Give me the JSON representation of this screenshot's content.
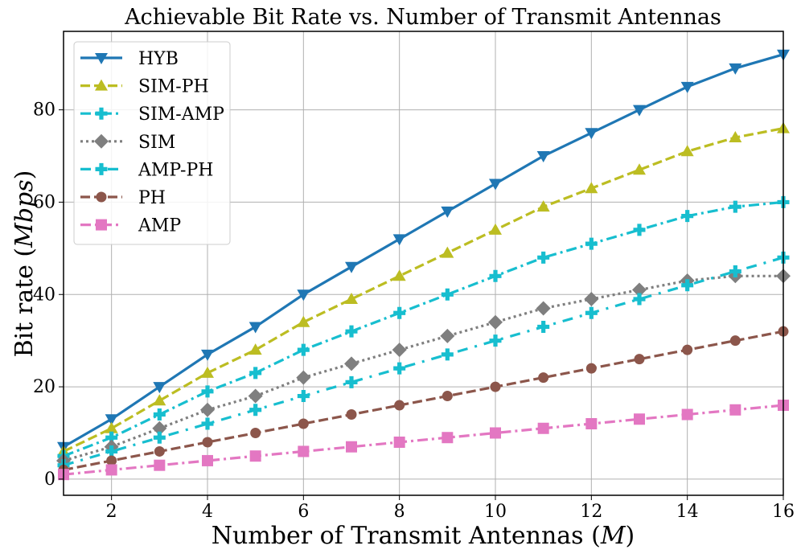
{
  "chart_data": {
    "type": "line",
    "title": "Achievable Bit Rate vs. Number of Transmit Antennas",
    "xlabel_prefix": "Number of Transmit Antennas (",
    "xlabel_var": "M",
    "xlabel_suffix": ")",
    "ylabel_prefix": "Bit rate (",
    "ylabel_var": "Mbps",
    "ylabel_suffix": ")",
    "xlim": [
      1,
      16
    ],
    "ylim": [
      -3.5,
      97
    ],
    "xticks": [
      2,
      4,
      6,
      8,
      10,
      12,
      14,
      16
    ],
    "yticks": [
      0,
      20,
      40,
      60,
      80
    ],
    "grid": true,
    "legend_position": "top-left",
    "x": [
      1,
      2,
      3,
      4,
      5,
      6,
      7,
      8,
      9,
      10,
      11,
      12,
      13,
      14,
      15,
      16
    ],
    "series": [
      {
        "name": "HYB",
        "color": "#1f77b4",
        "dash": "solid",
        "marker": "triangle-down",
        "values": [
          7,
          13,
          20,
          27,
          33,
          40,
          46,
          52,
          58,
          64,
          70,
          75,
          80,
          85,
          89,
          92
        ]
      },
      {
        "name": "SIM-PH",
        "color": "#bcbd22",
        "dash": "dashed",
        "marker": "triangle-up",
        "values": [
          6,
          11,
          17,
          23,
          28,
          34,
          39,
          44,
          49,
          54,
          59,
          63,
          67,
          71,
          74,
          76
        ]
      },
      {
        "name": "SIM-AMP",
        "color": "#17becf",
        "dash": "dashdot",
        "marker": "plus",
        "values": [
          5,
          9,
          14,
          19,
          23,
          28,
          32,
          36,
          40,
          44,
          48,
          51,
          54,
          57,
          59,
          60
        ]
      },
      {
        "name": "SIM",
        "color": "#7f7f7f",
        "dash": "dotted",
        "marker": "diamond",
        "values": [
          4,
          7,
          11,
          15,
          18,
          22,
          25,
          28,
          31,
          34,
          37,
          39,
          41,
          43,
          44,
          44
        ]
      },
      {
        "name": "AMP-PH",
        "color": "#17becf",
        "dash": "loosedashdot",
        "marker": "plus",
        "values": [
          3,
          6,
          9,
          12,
          15,
          18,
          21,
          24,
          27,
          30,
          33,
          36,
          39,
          42,
          45,
          48
        ]
      },
      {
        "name": "PH",
        "color": "#8c564b",
        "dash": "dashed",
        "marker": "circle",
        "values": [
          2,
          4,
          6,
          8,
          10,
          12,
          14,
          16,
          18,
          20,
          22,
          24,
          26,
          28,
          30,
          32
        ]
      },
      {
        "name": "AMP",
        "color": "#e377c2",
        "dash": "dashdot",
        "marker": "square",
        "values": [
          1,
          2,
          3,
          4,
          5,
          6,
          7,
          8,
          9,
          10,
          11,
          12,
          13,
          14,
          15,
          16
        ]
      }
    ]
  }
}
